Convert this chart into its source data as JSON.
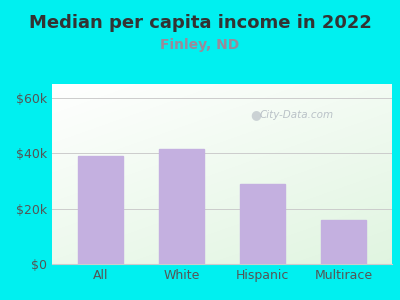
{
  "title": "Median per capita income in 2022",
  "subtitle": "Finley, ND",
  "categories": [
    "All",
    "White",
    "Hispanic",
    "Multirace"
  ],
  "values": [
    39000,
    41500,
    29000,
    16000
  ],
  "bar_color": "#c4b0e0",
  "background_color": "#00f0f0",
  "title_color": "#333333",
  "subtitle_color": "#9a8a9a",
  "axis_label_color": "#555555",
  "grid_color": "#cccccc",
  "ylim": [
    0,
    65000
  ],
  "yticks": [
    0,
    20000,
    40000,
    60000
  ],
  "ytick_labels": [
    "$0",
    "$20k",
    "$40k",
    "$60k"
  ],
  "title_fontsize": 13,
  "subtitle_fontsize": 10,
  "tick_fontsize": 9,
  "watermark": "City-Data.com",
  "plot_bg_color_top": "#d8eed8",
  "plot_bg_color_bottom": "#f8fff8"
}
